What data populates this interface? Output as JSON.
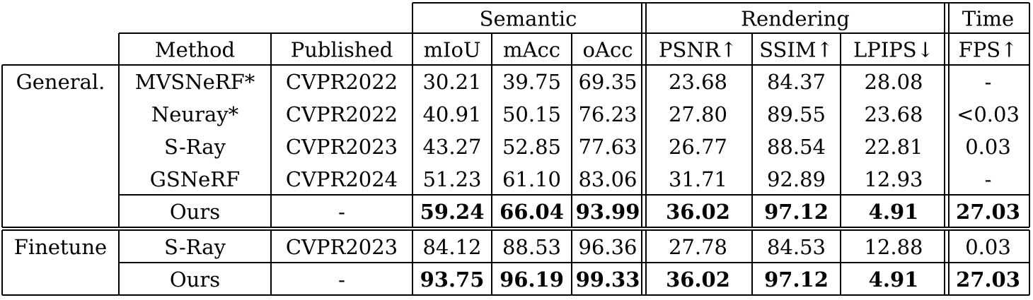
{
  "table": {
    "group_headers": [
      "Semantic",
      "Rendering",
      "Time"
    ],
    "column_headers": [
      "Method",
      "Published",
      "mIoU",
      "mAcc",
      "oAcc",
      "PSNR↑",
      "SSIM↑",
      "LPIPS↓",
      "FPS↑"
    ],
    "sections": [
      {
        "label": "General.",
        "rows": [
          {
            "cells": [
              "MVSNeRF*",
              "CVPR2022",
              "30.21",
              "39.75",
              "69.35",
              "23.68",
              "84.37",
              "28.08",
              "-"
            ],
            "bold": false
          },
          {
            "cells": [
              "Neuray*",
              "CVPR2022",
              "40.91",
              "50.15",
              "76.23",
              "27.80",
              "89.55",
              "23.68",
              "<0.03"
            ],
            "bold": false
          },
          {
            "cells": [
              "S-Ray",
              "CVPR2023",
              "43.27",
              "52.85",
              "77.63",
              "26.77",
              "88.54",
              "22.81",
              "0.03"
            ],
            "bold": false
          },
          {
            "cells": [
              "GSNeRF",
              "CVPR2024",
              "51.23",
              "61.10",
              "83.06",
              "31.71",
              "92.89",
              "12.93",
              "-"
            ],
            "bold": false
          },
          {
            "cells": [
              "Ours",
              "-",
              "59.24",
              "66.04",
              "93.99",
              "36.02",
              "97.12",
              "4.91",
              "27.03"
            ],
            "bold": true
          }
        ]
      },
      {
        "label": "Finetune",
        "rows": [
          {
            "cells": [
              "S-Ray",
              "CVPR2023",
              "84.12",
              "88.53",
              "96.36",
              "27.78",
              "84.53",
              "12.88",
              "0.03"
            ],
            "bold": false
          },
          {
            "cells": [
              "Ours",
              "-",
              "93.75",
              "96.19",
              "99.33",
              "36.02",
              "97.12",
              "4.91",
              "27.03"
            ],
            "bold": true
          }
        ]
      }
    ]
  }
}
